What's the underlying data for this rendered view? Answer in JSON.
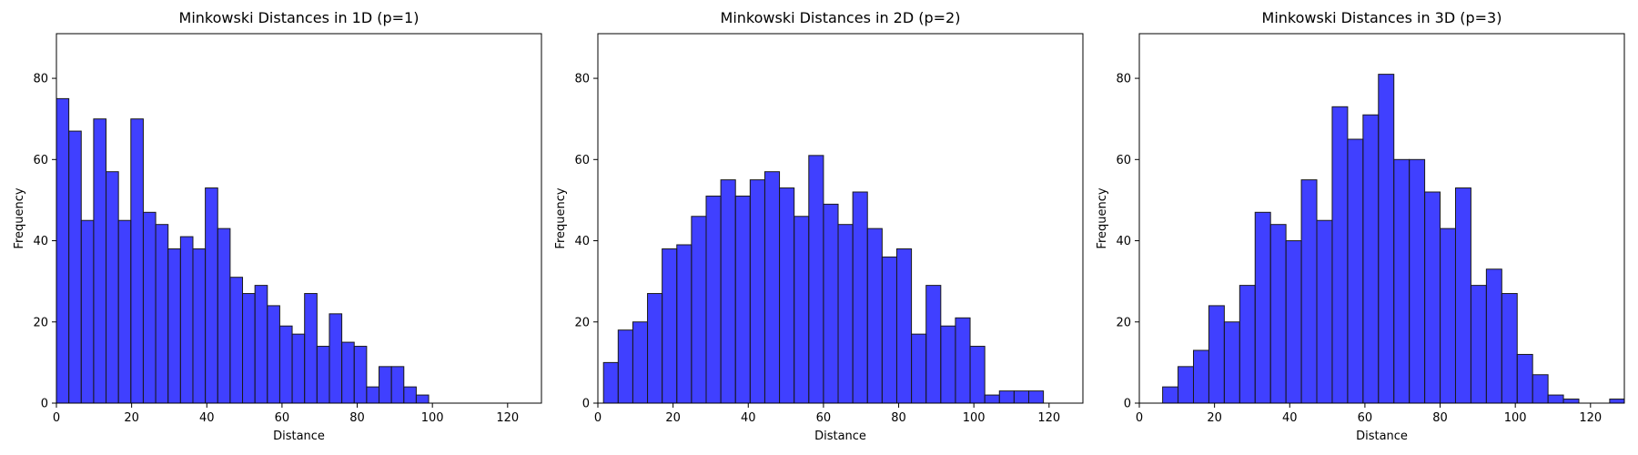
{
  "chart_data": [
    {
      "type": "bar",
      "title": "Minkowski Distances in 1D (p=1)",
      "xlabel": "Distance",
      "ylabel": "Frequency",
      "xlim": [
        0,
        129
      ],
      "ylim": [
        0,
        91
      ],
      "xticks": [
        0,
        20,
        40,
        60,
        80,
        100,
        120
      ],
      "yticks": [
        0,
        20,
        40,
        60,
        80
      ],
      "bar_color": "#0000ff",
      "bins": [
        {
          "x0": 0,
          "x1": 3.3,
          "count": 75
        },
        {
          "x0": 3.3,
          "x1": 6.6,
          "count": 67
        },
        {
          "x0": 6.6,
          "x1": 9.9,
          "count": 45
        },
        {
          "x0": 9.9,
          "x1": 13.2,
          "count": 70
        },
        {
          "x0": 13.2,
          "x1": 16.5,
          "count": 57
        },
        {
          "x0": 16.5,
          "x1": 19.8,
          "count": 45
        },
        {
          "x0": 19.8,
          "x1": 23.1,
          "count": 70
        },
        {
          "x0": 23.1,
          "x1": 26.4,
          "count": 47
        },
        {
          "x0": 26.4,
          "x1": 29.7,
          "count": 44
        },
        {
          "x0": 29.7,
          "x1": 33.0,
          "count": 38
        },
        {
          "x0": 33.0,
          "x1": 36.3,
          "count": 41
        },
        {
          "x0": 36.3,
          "x1": 39.6,
          "count": 38
        },
        {
          "x0": 39.6,
          "x1": 42.9,
          "count": 53
        },
        {
          "x0": 42.9,
          "x1": 46.2,
          "count": 43
        },
        {
          "x0": 46.2,
          "x1": 49.5,
          "count": 31
        },
        {
          "x0": 49.5,
          "x1": 52.8,
          "count": 27
        },
        {
          "x0": 52.8,
          "x1": 56.1,
          "count": 29
        },
        {
          "x0": 56.1,
          "x1": 59.4,
          "count": 24
        },
        {
          "x0": 59.4,
          "x1": 62.7,
          "count": 19
        },
        {
          "x0": 62.7,
          "x1": 66.0,
          "count": 17
        },
        {
          "x0": 66.0,
          "x1": 69.3,
          "count": 27
        },
        {
          "x0": 69.3,
          "x1": 72.6,
          "count": 14
        },
        {
          "x0": 72.6,
          "x1": 75.9,
          "count": 22
        },
        {
          "x0": 75.9,
          "x1": 79.2,
          "count": 15
        },
        {
          "x0": 79.2,
          "x1": 82.5,
          "count": 14
        },
        {
          "x0": 82.5,
          "x1": 85.8,
          "count": 4
        },
        {
          "x0": 85.8,
          "x1": 89.1,
          "count": 9
        },
        {
          "x0": 89.1,
          "x1": 92.4,
          "count": 9
        },
        {
          "x0": 92.4,
          "x1": 95.7,
          "count": 4
        },
        {
          "x0": 95.7,
          "x1": 99.0,
          "count": 2
        }
      ]
    },
    {
      "type": "bar",
      "title": "Minkowski Distances in 2D (p=2)",
      "xlabel": "Distance",
      "ylabel": "Frequency",
      "xlim": [
        0,
        129
      ],
      "ylim": [
        0,
        91
      ],
      "xticks": [
        0,
        20,
        40,
        60,
        80,
        100,
        120
      ],
      "yticks": [
        0,
        20,
        40,
        60,
        80
      ],
      "bar_color": "#0000ff",
      "bins": [
        {
          "x0": 1.5,
          "x1": 5.4,
          "count": 10
        },
        {
          "x0": 5.4,
          "x1": 9.3,
          "count": 18
        },
        {
          "x0": 9.3,
          "x1": 13.2,
          "count": 20
        },
        {
          "x0": 13.2,
          "x1": 17.1,
          "count": 27
        },
        {
          "x0": 17.1,
          "x1": 21.0,
          "count": 38
        },
        {
          "x0": 21.0,
          "x1": 24.9,
          "count": 39
        },
        {
          "x0": 24.9,
          "x1": 28.8,
          "count": 46
        },
        {
          "x0": 28.8,
          "x1": 32.7,
          "count": 51
        },
        {
          "x0": 32.7,
          "x1": 36.6,
          "count": 55
        },
        {
          "x0": 36.6,
          "x1": 40.5,
          "count": 51
        },
        {
          "x0": 40.5,
          "x1": 44.4,
          "count": 55
        },
        {
          "x0": 44.4,
          "x1": 48.3,
          "count": 57
        },
        {
          "x0": 48.3,
          "x1": 52.2,
          "count": 53
        },
        {
          "x0": 52.2,
          "x1": 56.1,
          "count": 46
        },
        {
          "x0": 56.1,
          "x1": 60.0,
          "count": 61
        },
        {
          "x0": 60.0,
          "x1": 63.9,
          "count": 49
        },
        {
          "x0": 63.9,
          "x1": 67.8,
          "count": 44
        },
        {
          "x0": 67.8,
          "x1": 71.7,
          "count": 52
        },
        {
          "x0": 71.7,
          "x1": 75.6,
          "count": 43
        },
        {
          "x0": 75.6,
          "x1": 79.5,
          "count": 36
        },
        {
          "x0": 79.5,
          "x1": 83.4,
          "count": 38
        },
        {
          "x0": 83.4,
          "x1": 87.3,
          "count": 17
        },
        {
          "x0": 87.3,
          "x1": 91.2,
          "count": 29
        },
        {
          "x0": 91.2,
          "x1": 95.1,
          "count": 19
        },
        {
          "x0": 95.1,
          "x1": 99.0,
          "count": 21
        },
        {
          "x0": 99.0,
          "x1": 102.9,
          "count": 14
        },
        {
          "x0": 102.9,
          "x1": 106.8,
          "count": 2
        },
        {
          "x0": 106.8,
          "x1": 110.7,
          "count": 3
        },
        {
          "x0": 110.7,
          "x1": 114.6,
          "count": 3
        },
        {
          "x0": 114.6,
          "x1": 118.5,
          "count": 3
        }
      ]
    },
    {
      "type": "bar",
      "title": "Minkowski Distances in 3D (p=3)",
      "xlabel": "Distance",
      "ylabel": "Frequency",
      "xlim": [
        0,
        129
      ],
      "ylim": [
        0,
        91
      ],
      "xticks": [
        0,
        20,
        40,
        60,
        80,
        100,
        120
      ],
      "yticks": [
        0,
        20,
        40,
        60,
        80
      ],
      "bar_color": "#0000ff",
      "bins": [
        {
          "x0": 6.2,
          "x1": 10.3,
          "count": 4
        },
        {
          "x0": 10.3,
          "x1": 14.4,
          "count": 9
        },
        {
          "x0": 14.4,
          "x1": 18.5,
          "count": 13
        },
        {
          "x0": 18.5,
          "x1": 22.6,
          "count": 24
        },
        {
          "x0": 22.6,
          "x1": 26.7,
          "count": 20
        },
        {
          "x0": 26.7,
          "x1": 30.8,
          "count": 29
        },
        {
          "x0": 30.8,
          "x1": 34.9,
          "count": 47
        },
        {
          "x0": 34.9,
          "x1": 39.0,
          "count": 44
        },
        {
          "x0": 39.0,
          "x1": 43.1,
          "count": 40
        },
        {
          "x0": 43.1,
          "x1": 47.2,
          "count": 55
        },
        {
          "x0": 47.2,
          "x1": 51.3,
          "count": 45
        },
        {
          "x0": 51.3,
          "x1": 55.4,
          "count": 73
        },
        {
          "x0": 55.4,
          "x1": 59.5,
          "count": 65
        },
        {
          "x0": 59.5,
          "x1": 63.6,
          "count": 71
        },
        {
          "x0": 63.6,
          "x1": 67.7,
          "count": 81
        },
        {
          "x0": 67.7,
          "x1": 71.8,
          "count": 60
        },
        {
          "x0": 71.8,
          "x1": 75.9,
          "count": 60
        },
        {
          "x0": 75.9,
          "x1": 80.0,
          "count": 52
        },
        {
          "x0": 80.0,
          "x1": 84.1,
          "count": 43
        },
        {
          "x0": 84.1,
          "x1": 88.2,
          "count": 53
        },
        {
          "x0": 88.2,
          "x1": 92.3,
          "count": 29
        },
        {
          "x0": 92.3,
          "x1": 96.4,
          "count": 33
        },
        {
          "x0": 96.4,
          "x1": 100.5,
          "count": 27
        },
        {
          "x0": 100.5,
          "x1": 104.6,
          "count": 12
        },
        {
          "x0": 104.6,
          "x1": 108.7,
          "count": 7
        },
        {
          "x0": 108.7,
          "x1": 112.8,
          "count": 2
        },
        {
          "x0": 112.8,
          "x1": 116.9,
          "count": 1
        },
        {
          "x0": 116.9,
          "x1": 121.0,
          "count": 0
        },
        {
          "x0": 121.0,
          "x1": 125.1,
          "count": 0
        },
        {
          "x0": 125.1,
          "x1": 129.2,
          "count": 1
        }
      ]
    }
  ]
}
